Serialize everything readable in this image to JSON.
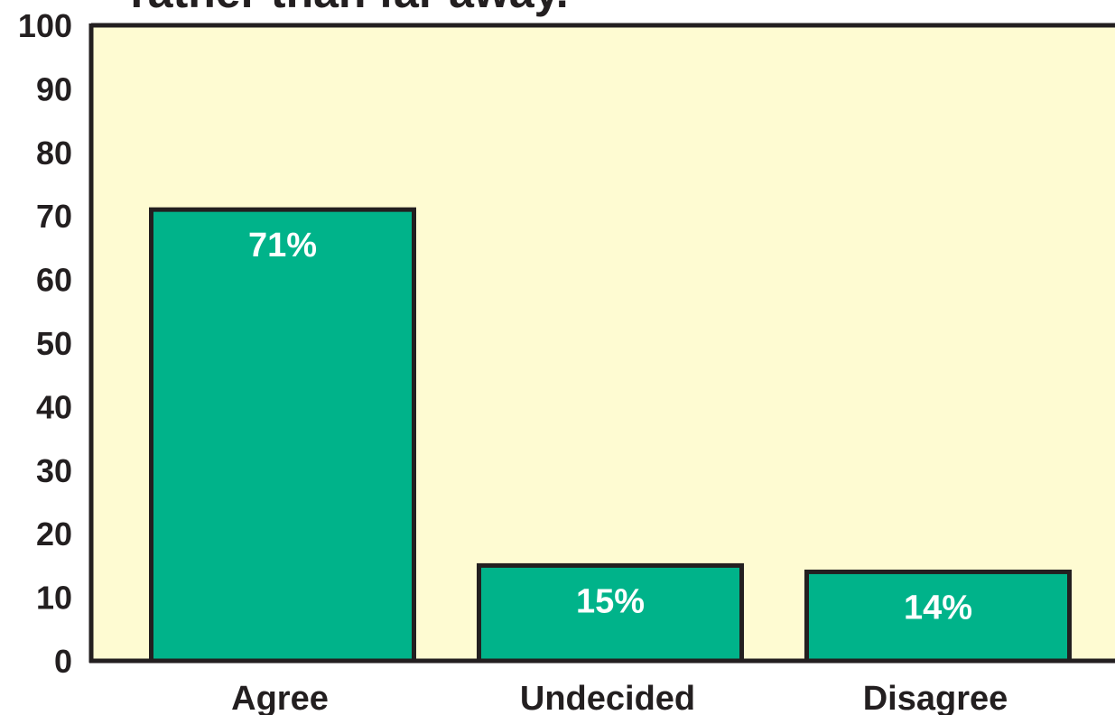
{
  "chart_data": {
    "type": "bar",
    "title": "rather than far away.",
    "categories": [
      "Agree",
      "Undecided",
      "Disagree"
    ],
    "values": [
      71,
      15,
      14
    ],
    "data_labels": [
      "71%",
      "15%",
      "14%"
    ],
    "xlabel": "",
    "ylabel": "",
    "ylim": [
      0,
      100
    ],
    "yticks": [
      0,
      10,
      20,
      30,
      40,
      50,
      60,
      70,
      80,
      90,
      100
    ],
    "grid": false,
    "legend": "none",
    "colors": {
      "plot_background": "#fefbd2",
      "bar_fill": "#00b38a",
      "bar_outline": "#231f20",
      "axis": "#231f20",
      "text": "#231f20",
      "data_label_text": "#ffffff"
    }
  }
}
